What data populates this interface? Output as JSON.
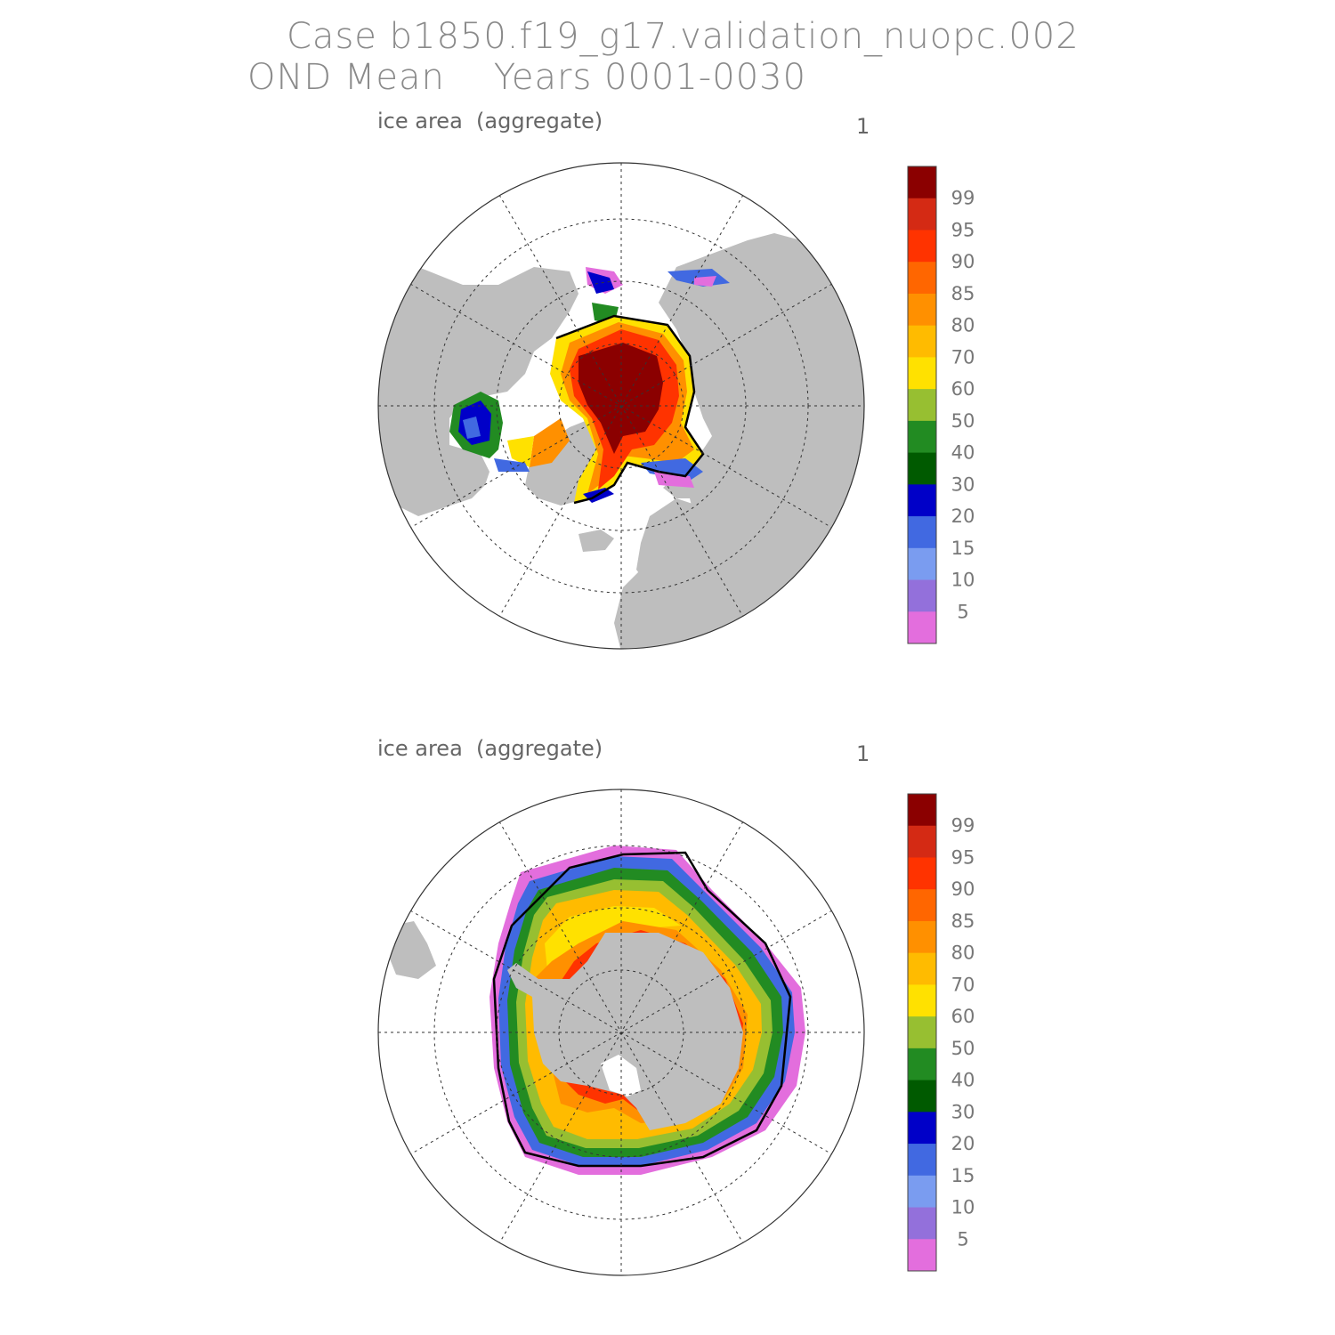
{
  "title": {
    "line1": "Case b1850.f19_g17.validation_nuopc.002",
    "line2": "OND Mean    Years 0001-0030"
  },
  "panels": [
    {
      "id": "arctic",
      "label": "ice area  (aggregate)",
      "number": "1",
      "hemisphere": "north"
    },
    {
      "id": "antarctic",
      "label": "ice area  (aggregate)",
      "number": "1",
      "hemisphere": "south"
    }
  ],
  "colorbar": {
    "labels": [
      "99",
      "95",
      "90",
      "85",
      "80",
      "70",
      "60",
      "50",
      "40",
      "30",
      "20",
      "15",
      "10",
      "5"
    ],
    "colors": [
      "#8b0000",
      "#d42a14",
      "#ff3300",
      "#ff6600",
      "#ff9000",
      "#ffbb00",
      "#ffe100",
      "#97bf31",
      "#228b22",
      "#005a00",
      "#0000c8",
      "#4169e1",
      "#7a9cf0",
      "#9370db",
      "#e36edd"
    ]
  },
  "colors": {
    "land": "#bebebe",
    "ocean": "#ffffff",
    "ice_edge": "#000000"
  }
}
